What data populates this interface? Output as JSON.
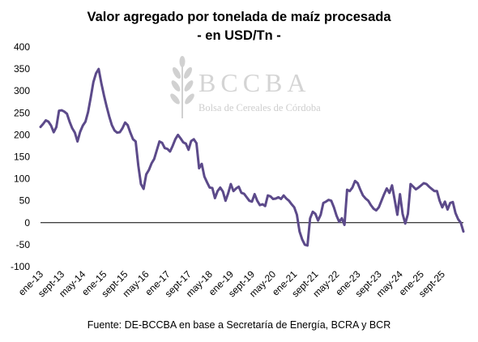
{
  "title": "Valor agregado por tonelada de maíz procesada",
  "subtitle": "- en USD/Tn -",
  "source": "Fuente: DE-BCCBA en base a Secretaría de Energía, BCRA y BCR",
  "watermark": {
    "logo": "BCCBA",
    "org": "Bolsa de Cereales de Córdoba",
    "icon": "wheat-icon"
  },
  "colors": {
    "line": "#5c4a8a",
    "axis": "#000000",
    "watermark": "#b9b9b9"
  },
  "chart_data": {
    "type": "line",
    "title": "Valor agregado por tonelada de maíz procesada",
    "subtitle": "- en USD/Tn -",
    "xlabel": "",
    "ylabel": "",
    "ylim": [
      -100,
      400
    ],
    "yticks": [
      -100,
      -50,
      0,
      50,
      100,
      150,
      200,
      250,
      300,
      350,
      400
    ],
    "grid": false,
    "legend": "none",
    "xtick_labels": [
      "ene-13",
      "sept-13",
      "may-14",
      "ene-15",
      "sept-15",
      "may-16",
      "ene-17",
      "sept-17",
      "may-18",
      "ene-19",
      "sept-19",
      "may-20",
      "ene-21",
      "sept-21",
      "may-22",
      "ene-23",
      "sept-23",
      "may-24",
      "ene-25",
      "sept-25"
    ],
    "series": [
      {
        "values": [
          218,
          225,
          233,
          230,
          221,
          206,
          218,
          255,
          256,
          253,
          248,
          230,
          215,
          205,
          185,
          207,
          221,
          230,
          252,
          285,
          320,
          340,
          350,
          318,
          290,
          265,
          242,
          222,
          210,
          205,
          206,
          215,
          228,
          222,
          205,
          190,
          185,
          130,
          88,
          77,
          110,
          120,
          135,
          145,
          165,
          185,
          182,
          170,
          168,
          162,
          175,
          190,
          200,
          192,
          183,
          180,
          166,
          186,
          190,
          181,
          124,
          134,
          105,
          92,
          80,
          79,
          56,
          72,
          80,
          71,
          50,
          67,
          88,
          72,
          78,
          82,
          68,
          66,
          58,
          50,
          48,
          65,
          50,
          40,
          42,
          38,
          62,
          60,
          54,
          55,
          58,
          54,
          62,
          55,
          50,
          42,
          35,
          18,
          -20,
          -38,
          -50,
          -52,
          10,
          25,
          20,
          5,
          18,
          45,
          48,
          52,
          50,
          35,
          16,
          2,
          10,
          -5,
          75,
          72,
          80,
          95,
          90,
          75,
          62,
          55,
          50,
          40,
          32,
          28,
          35,
          50,
          65,
          78,
          68,
          85,
          52,
          18,
          65,
          20,
          -2,
          20,
          88,
          82,
          76,
          80,
          85,
          90,
          88,
          82,
          77,
          72,
          72,
          50,
          35,
          48,
          30,
          45,
          47,
          22,
          8,
          0,
          -20
        ]
      }
    ]
  }
}
